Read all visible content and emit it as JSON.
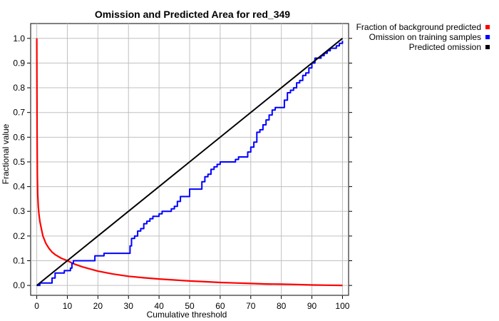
{
  "chart_data": {
    "type": "line",
    "title": "Omission and Predicted Area for red_349",
    "xlabel": "Cumulative threshold",
    "ylabel": "Fractional value",
    "xlim": [
      -2,
      102
    ],
    "ylim": [
      -0.04,
      1.06
    ],
    "x_ticks": [
      "0",
      "10",
      "20",
      "30",
      "40",
      "50",
      "60",
      "70",
      "80",
      "90",
      "100"
    ],
    "y_ticks": [
      "0.0",
      "0.1",
      "0.2",
      "0.3",
      "0.4",
      "0.5",
      "0.6",
      "0.7",
      "0.8",
      "0.9",
      "1.0"
    ],
    "grid": true,
    "legend_position": "outside-top-right",
    "series": [
      {
        "name": "Fraction of background predicted",
        "color": "#ff0000",
        "x": [
          0,
          0.1,
          0.2,
          0.3,
          0.5,
          0.7,
          1,
          1.5,
          2,
          3,
          4,
          5,
          6,
          8,
          10,
          12,
          15,
          20,
          25,
          30,
          35,
          40,
          45,
          50,
          55,
          60,
          65,
          70,
          75,
          80,
          85,
          90,
          95,
          100
        ],
        "values": [
          1.0,
          0.62,
          0.45,
          0.37,
          0.32,
          0.29,
          0.26,
          0.23,
          0.2,
          0.17,
          0.15,
          0.135,
          0.125,
          0.11,
          0.1,
          0.088,
          0.075,
          0.058,
          0.046,
          0.037,
          0.031,
          0.026,
          0.022,
          0.018,
          0.015,
          0.012,
          0.01,
          0.008,
          0.006,
          0.005,
          0.004,
          0.002,
          0.001,
          0.0
        ]
      },
      {
        "name": "Omission on training samples",
        "color": "#0000ff",
        "x": [
          0,
          1,
          2,
          3,
          4,
          5,
          6,
          7,
          8,
          9,
          10,
          11,
          11.5,
          12,
          13,
          14,
          15,
          16,
          17,
          18,
          19,
          20,
          21,
          22,
          23,
          24,
          25,
          26,
          27,
          28,
          29,
          30,
          30.5,
          31,
          32,
          33,
          34,
          35,
          36,
          37,
          38,
          39,
          40,
          41,
          42,
          43,
          44,
          45,
          46,
          47,
          48,
          49,
          50,
          51,
          52,
          53,
          54,
          55,
          56,
          57,
          58,
          59,
          60,
          61,
          62,
          63,
          64,
          65,
          66,
          67,
          68,
          69,
          70,
          71,
          72,
          73,
          74,
          75,
          76,
          77,
          78,
          79,
          80,
          81,
          82,
          83,
          84,
          85,
          86,
          87,
          88,
          89,
          90,
          91,
          92,
          93,
          94,
          95,
          96,
          97,
          98,
          99,
          100
        ],
        "values": [
          0.0,
          0.01,
          0.01,
          0.01,
          0.01,
          0.03,
          0.05,
          0.05,
          0.05,
          0.06,
          0.06,
          0.07,
          0.09,
          0.1,
          0.1,
          0.1,
          0.1,
          0.1,
          0.1,
          0.1,
          0.12,
          0.12,
          0.12,
          0.13,
          0.13,
          0.13,
          0.13,
          0.13,
          0.13,
          0.13,
          0.13,
          0.13,
          0.16,
          0.19,
          0.2,
          0.22,
          0.23,
          0.25,
          0.26,
          0.27,
          0.28,
          0.28,
          0.29,
          0.3,
          0.3,
          0.3,
          0.31,
          0.32,
          0.34,
          0.36,
          0.36,
          0.36,
          0.39,
          0.39,
          0.39,
          0.39,
          0.42,
          0.44,
          0.45,
          0.47,
          0.48,
          0.49,
          0.5,
          0.5,
          0.5,
          0.5,
          0.5,
          0.51,
          0.52,
          0.52,
          0.52,
          0.54,
          0.56,
          0.58,
          0.62,
          0.63,
          0.65,
          0.67,
          0.69,
          0.71,
          0.72,
          0.72,
          0.72,
          0.75,
          0.78,
          0.79,
          0.8,
          0.82,
          0.83,
          0.85,
          0.86,
          0.88,
          0.9,
          0.92,
          0.92,
          0.93,
          0.94,
          0.95,
          0.96,
          0.96,
          0.97,
          0.98,
          0.99
        ]
      },
      {
        "name": "Predicted omission",
        "color": "#000000",
        "x": [
          0,
          100
        ],
        "values": [
          0.0,
          1.0
        ]
      }
    ]
  }
}
